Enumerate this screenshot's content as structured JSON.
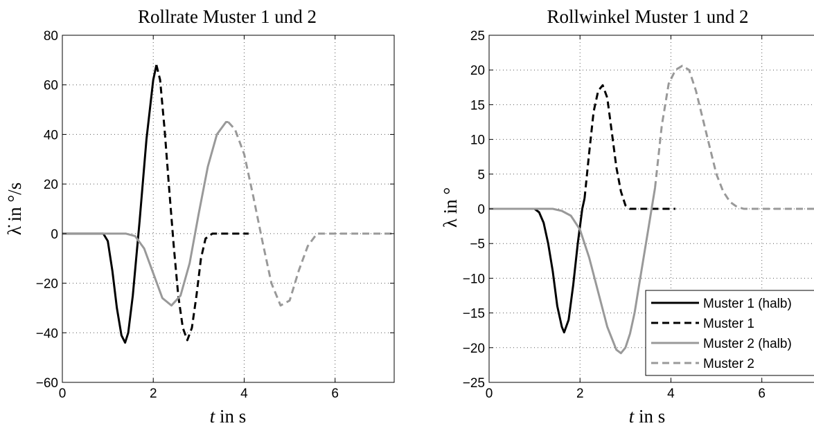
{
  "chart_data": [
    {
      "type": "line",
      "title": "Rollrate Muster 1 und 2",
      "xlabel_var": "t",
      "xlabel_rest": " in s",
      "ylabel": "λ̇ in °/s",
      "xlim": [
        0,
        7.3
      ],
      "ylim": [
        -60,
        80
      ],
      "xticks": [
        0,
        2,
        4,
        6
      ],
      "yticks": [
        -60,
        -40,
        -20,
        0,
        20,
        40,
        60,
        80
      ],
      "ytick_labels": [
        "−60",
        "−40",
        "−20",
        "0",
        "20",
        "40",
        "60",
        "80"
      ],
      "grid": true,
      "series": [
        {
          "style": "solid-black",
          "color": "#000000",
          "x": [
            0,
            0.3,
            0.6,
            0.9,
            1.0,
            1.1,
            1.2,
            1.3,
            1.38,
            1.45,
            1.55,
            1.7,
            1.85,
            2.0,
            2.07
          ],
          "y": [
            0,
            0,
            0,
            0,
            -3,
            -15,
            -30,
            -41,
            -44,
            -40,
            -25,
            5,
            38,
            62,
            68
          ]
        },
        {
          "style": "dashed-black",
          "color": "#000000",
          "x": [
            2.07,
            2.15,
            2.25,
            2.35,
            2.45,
            2.55,
            2.65,
            2.75,
            2.85,
            2.95,
            3.05,
            3.15,
            3.3,
            3.6,
            4.1
          ],
          "y": [
            68,
            62,
            42,
            18,
            -5,
            -25,
            -38,
            -43,
            -38,
            -25,
            -10,
            -2,
            0,
            0,
            0
          ]
        },
        {
          "style": "solid-gray",
          "color": "#999999",
          "x": [
            0,
            0.6,
            1.4,
            1.6,
            1.8,
            2.0,
            2.2,
            2.4,
            2.6,
            2.8,
            3.0,
            3.2,
            3.4,
            3.6,
            3.65
          ],
          "y": [
            0,
            0,
            0,
            -1,
            -6,
            -16,
            -26,
            -29,
            -25,
            -12,
            8,
            27,
            40,
            45,
            45
          ]
        },
        {
          "style": "dashed-gray",
          "color": "#999999",
          "x": [
            3.65,
            3.8,
            4.0,
            4.2,
            4.4,
            4.6,
            4.8,
            5.0,
            5.2,
            5.4,
            5.6,
            6.0,
            6.5,
            7.3
          ],
          "y": [
            45,
            42,
            32,
            15,
            -3,
            -20,
            -29,
            -27,
            -15,
            -5,
            0,
            0,
            0,
            0
          ]
        }
      ]
    },
    {
      "type": "line",
      "title": "Rollwinkel Muster 1 und 2",
      "xlabel_var": "t",
      "xlabel_rest": " in s",
      "ylabel": "λ in °",
      "xlim": [
        0,
        7.3
      ],
      "ylim": [
        -25,
        25
      ],
      "xticks": [
        0,
        2,
        4,
        6
      ],
      "yticks": [
        -25,
        -20,
        -15,
        -10,
        -5,
        0,
        5,
        10,
        15,
        20,
        25
      ],
      "ytick_labels": [
        "−25",
        "−20",
        "−15",
        "−10",
        "−5",
        "0",
        "5",
        "10",
        "15",
        "20",
        "25"
      ],
      "grid": true,
      "legend_position": "bottom-right",
      "series": [
        {
          "name": "Muster 1 (halb)",
          "style": "solid-black",
          "color": "#000000",
          "x": [
            0,
            0.6,
            1.0,
            1.1,
            1.2,
            1.3,
            1.4,
            1.5,
            1.6,
            1.65,
            1.75,
            1.85,
            1.95,
            2.05,
            2.1
          ],
          "y": [
            0,
            0,
            0,
            -0.5,
            -2,
            -5,
            -9,
            -14,
            -17,
            -17.8,
            -16,
            -11,
            -5,
            0,
            1.5
          ]
        },
        {
          "name": "Muster 1",
          "style": "dashed-black",
          "color": "#000000",
          "x": [
            2.1,
            2.2,
            2.3,
            2.4,
            2.5,
            2.6,
            2.7,
            2.8,
            2.9,
            3.0,
            3.1,
            3.3,
            3.6,
            4.1
          ],
          "y": [
            1.5,
            8,
            14,
            17,
            17.8,
            16,
            11,
            6,
            2.5,
            0.5,
            0,
            0,
            0,
            0
          ]
        },
        {
          "name": "Muster 2 (halb)",
          "style": "solid-gray",
          "color": "#999999",
          "x": [
            0,
            0.8,
            1.4,
            1.6,
            1.8,
            2.0,
            2.2,
            2.4,
            2.6,
            2.8,
            2.9,
            3.0,
            3.1,
            3.2,
            3.3,
            3.4,
            3.5,
            3.6,
            3.65
          ],
          "y": [
            0,
            0,
            0,
            -0.3,
            -1,
            -3,
            -7,
            -12,
            -17,
            -20.3,
            -20.8,
            -20,
            -18,
            -15,
            -11,
            -7,
            -3,
            1,
            3
          ]
        },
        {
          "name": "Muster 2",
          "style": "dashed-gray",
          "color": "#999999",
          "x": [
            3.65,
            3.8,
            3.95,
            4.1,
            4.25,
            4.4,
            4.55,
            4.7,
            4.85,
            5.0,
            5.15,
            5.3,
            5.45,
            5.6,
            6.0,
            6.6,
            7.3
          ],
          "y": [
            3,
            12,
            18,
            20,
            20.6,
            20,
            17,
            13,
            9,
            5,
            2.5,
            1,
            0.3,
            0,
            0,
            0,
            0
          ]
        }
      ]
    }
  ]
}
